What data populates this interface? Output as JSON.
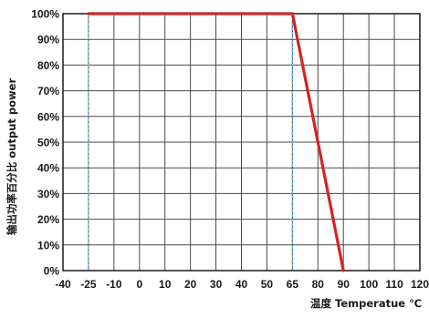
{
  "chart_data": {
    "type": "line",
    "xlabel": "温度 Temperatue ℃",
    "ylabel": "输出功率百分比 output power",
    "xlim": [
      -40,
      120
    ],
    "ylim": [
      0,
      100
    ],
    "x_ticks": [
      "-40",
      "-25",
      "-10",
      "0",
      "10",
      "20",
      "30",
      "40",
      "50",
      "65",
      "80",
      "90",
      "100",
      "110",
      "120"
    ],
    "x_tick_values": [
      -40,
      -25,
      -10,
      0,
      10,
      20,
      30,
      40,
      50,
      65,
      80,
      90,
      100,
      110,
      120
    ],
    "highlighted_x_ticks": [
      -25,
      65,
      90
    ],
    "y_ticks": [
      "0%",
      "10%",
      "20%",
      "30%",
      "40%",
      "50%",
      "60%",
      "70%",
      "80%",
      "90%",
      "100%"
    ],
    "y_tick_values": [
      0,
      10,
      20,
      30,
      40,
      50,
      60,
      70,
      80,
      90,
      100
    ],
    "grid": true,
    "reference_lines_x": [
      -25,
      65
    ],
    "series": [
      {
        "x": [
          -25,
          65,
          90
        ],
        "y": [
          100,
          100,
          0
        ]
      }
    ],
    "colors": {
      "line": "#d42424",
      "highlight_tick": "#d42424",
      "reference_line": "#5ab4e6",
      "grid": "#4a4a4a",
      "frame": "#1a1a1a",
      "text": "#1a1a1a"
    }
  }
}
